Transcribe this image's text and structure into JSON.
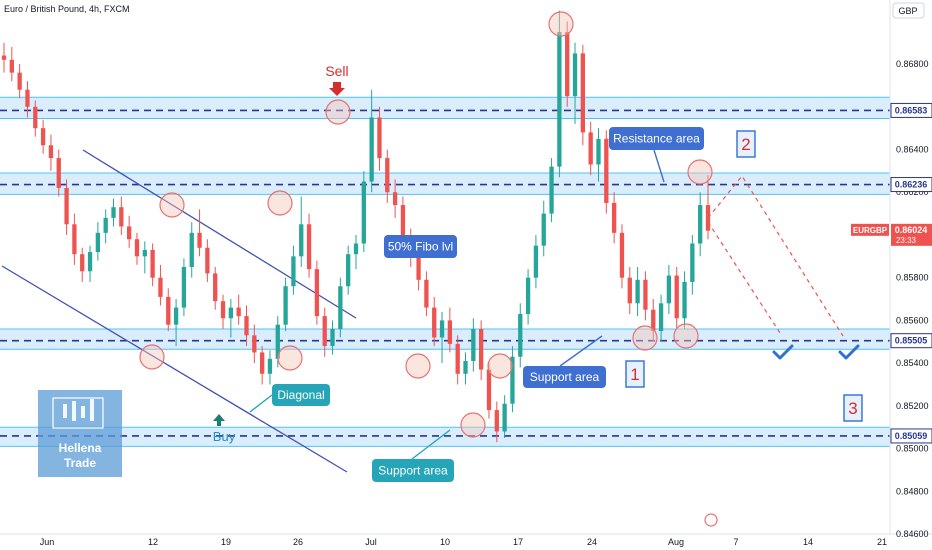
{
  "header": {
    "title": "Euro / British Pound, 4h, FXCM",
    "currency": "GBP"
  },
  "colors": {
    "up": "#26a69a",
    "down": "#ef5350",
    "band_fill": "#bbdefb",
    "band_line": "#4fc3f7",
    "level_line": "#283593",
    "trend_line": "#3f51b5",
    "teal_label": "#26a5b8",
    "blue_label": "#3f6fd0",
    "sell_color": "#d32f2f",
    "buy_color": "#26a69a",
    "circle_fill": "#f5c6b8",
    "circle_stroke": "#e57373",
    "price_box": "#ffffff"
  },
  "chart_data": {
    "type": "candlestick",
    "instrument": "EURGBP",
    "timeframe": "4h",
    "ylim": [
      0.846,
      0.871
    ],
    "y_ticks": [
      "0.86800",
      "0.86600",
      "0.86400",
      "0.86200",
      "0.86000",
      "0.85800",
      "0.85600",
      "0.85400",
      "0.85200",
      "0.85000",
      "0.84800",
      "0.84600"
    ],
    "x_ticks": [
      "Jun",
      "12",
      "19",
      "26",
      "Jul",
      "10",
      "17",
      "24",
      "Aug",
      "7",
      "14",
      "21"
    ],
    "levels": [
      {
        "price": 0.86583,
        "label": "0.86583",
        "band": [
          0.86545,
          0.86645
        ]
      },
      {
        "price": 0.86236,
        "label": "0.86236",
        "band": [
          0.8619,
          0.8629
        ]
      },
      {
        "price": 0.85505,
        "label": "0.85505",
        "band": [
          0.85465,
          0.8556
        ]
      },
      {
        "price": 0.85059,
        "label": "0.85059",
        "band": [
          0.8501,
          0.851
        ]
      }
    ],
    "current": {
      "symbol": "EURGBP",
      "price": "0.86024",
      "countdown": "23:33"
    },
    "series": [
      {
        "values": [
          [
            0.8684,
            0.869,
            0.8676,
            0.8682
          ],
          [
            0.8682,
            0.8688,
            0.8672,
            0.8676
          ],
          [
            0.8676,
            0.868,
            0.8664,
            0.8668
          ],
          [
            0.8668,
            0.8672,
            0.8655,
            0.866
          ],
          [
            0.866,
            0.8663,
            0.8646,
            0.865
          ],
          [
            0.865,
            0.8654,
            0.8638,
            0.8642
          ],
          [
            0.8642,
            0.8647,
            0.863,
            0.8636
          ],
          [
            0.8636,
            0.864,
            0.8618,
            0.8622
          ],
          [
            0.8622,
            0.8626,
            0.86,
            0.8605
          ],
          [
            0.8605,
            0.861,
            0.8586,
            0.8591
          ],
          [
            0.8591,
            0.8594,
            0.8578,
            0.8583
          ],
          [
            0.8583,
            0.8595,
            0.8578,
            0.8592
          ],
          [
            0.8592,
            0.8606,
            0.8588,
            0.8601
          ],
          [
            0.8601,
            0.8612,
            0.8596,
            0.8608
          ],
          [
            0.8608,
            0.8617,
            0.8604,
            0.8613
          ],
          [
            0.8613,
            0.8618,
            0.86,
            0.8604
          ],
          [
            0.8604,
            0.8609,
            0.8594,
            0.8598
          ],
          [
            0.8598,
            0.8601,
            0.8586,
            0.859
          ],
          [
            0.859,
            0.8597,
            0.8582,
            0.8593
          ],
          [
            0.8593,
            0.8596,
            0.8576,
            0.858
          ],
          [
            0.858,
            0.8586,
            0.8567,
            0.8571
          ],
          [
            0.8571,
            0.8575,
            0.8555,
            0.8558
          ],
          [
            0.8558,
            0.857,
            0.8548,
            0.8566
          ],
          [
            0.8566,
            0.8589,
            0.8562,
            0.8585
          ],
          [
            0.8585,
            0.8606,
            0.858,
            0.8601
          ],
          [
            0.8601,
            0.8612,
            0.859,
            0.8594
          ],
          [
            0.8594,
            0.8598,
            0.8578,
            0.8582
          ],
          [
            0.8582,
            0.8585,
            0.8565,
            0.8569
          ],
          [
            0.8569,
            0.8572,
            0.8556,
            0.8561
          ],
          [
            0.8561,
            0.857,
            0.8552,
            0.8566
          ],
          [
            0.8566,
            0.8572,
            0.8558,
            0.8562
          ],
          [
            0.8562,
            0.8567,
            0.8548,
            0.8553
          ],
          [
            0.8553,
            0.8558,
            0.854,
            0.8545
          ],
          [
            0.8545,
            0.8548,
            0.853,
            0.8535
          ],
          [
            0.8535,
            0.8546,
            0.853,
            0.8542
          ],
          [
            0.8542,
            0.8562,
            0.8538,
            0.8558
          ],
          [
            0.8558,
            0.858,
            0.8555,
            0.8576
          ],
          [
            0.8576,
            0.8595,
            0.8572,
            0.859
          ],
          [
            0.859,
            0.8618,
            0.8585,
            0.8605
          ],
          [
            0.8605,
            0.861,
            0.858,
            0.8584
          ],
          [
            0.8584,
            0.8588,
            0.8558,
            0.8562
          ],
          [
            0.8562,
            0.8566,
            0.8543,
            0.8548
          ],
          [
            0.8548,
            0.856,
            0.8544,
            0.8556
          ],
          [
            0.8556,
            0.858,
            0.8552,
            0.8576
          ],
          [
            0.8576,
            0.8595,
            0.8572,
            0.8591
          ],
          [
            0.8591,
            0.86,
            0.8584,
            0.8596
          ],
          [
            0.8596,
            0.863,
            0.8592,
            0.8625
          ],
          [
            0.8625,
            0.8668,
            0.862,
            0.8655
          ],
          [
            0.8655,
            0.866,
            0.863,
            0.8636
          ],
          [
            0.8636,
            0.864,
            0.8615,
            0.862
          ],
          [
            0.862,
            0.8626,
            0.8608,
            0.8614
          ],
          [
            0.8614,
            0.8618,
            0.8594,
            0.8598
          ],
          [
            0.8598,
            0.8603,
            0.8585,
            0.859
          ],
          [
            0.859,
            0.8594,
            0.8574,
            0.8579
          ],
          [
            0.8579,
            0.8583,
            0.8562,
            0.8566
          ],
          [
            0.8566,
            0.8571,
            0.8548,
            0.8552
          ],
          [
            0.8552,
            0.8564,
            0.854,
            0.856
          ],
          [
            0.856,
            0.8566,
            0.8545,
            0.8549
          ],
          [
            0.8549,
            0.8553,
            0.853,
            0.8535
          ],
          [
            0.8535,
            0.8545,
            0.853,
            0.8541
          ],
          [
            0.8541,
            0.8561,
            0.8536,
            0.8556
          ],
          [
            0.8556,
            0.856,
            0.8532,
            0.8537
          ],
          [
            0.8537,
            0.8541,
            0.8514,
            0.8518
          ],
          [
            0.8518,
            0.8522,
            0.8503,
            0.8508
          ],
          [
            0.8508,
            0.8525,
            0.8505,
            0.8521
          ],
          [
            0.8521,
            0.8548,
            0.8517,
            0.8543
          ],
          [
            0.8543,
            0.8568,
            0.8538,
            0.8563
          ],
          [
            0.8563,
            0.8584,
            0.8558,
            0.858
          ],
          [
            0.858,
            0.86,
            0.8575,
            0.8595
          ],
          [
            0.8595,
            0.8616,
            0.859,
            0.861
          ],
          [
            0.861,
            0.8636,
            0.8606,
            0.8632
          ],
          [
            0.8632,
            0.8705,
            0.8627,
            0.8695
          ],
          [
            0.8695,
            0.87,
            0.866,
            0.8665
          ],
          [
            0.8665,
            0.869,
            0.8652,
            0.8685
          ],
          [
            0.8685,
            0.8689,
            0.8642,
            0.8648
          ],
          [
            0.8648,
            0.8653,
            0.8628,
            0.8633
          ],
          [
            0.8633,
            0.865,
            0.8625,
            0.8645
          ],
          [
            0.8645,
            0.8649,
            0.861,
            0.8615
          ],
          [
            0.8615,
            0.862,
            0.8596,
            0.8601
          ],
          [
            0.8601,
            0.8605,
            0.8575,
            0.858
          ],
          [
            0.858,
            0.8585,
            0.8563,
            0.8568
          ],
          [
            0.8568,
            0.8585,
            0.8562,
            0.8579
          ],
          [
            0.8579,
            0.8583,
            0.856,
            0.8565
          ],
          [
            0.8565,
            0.857,
            0.855,
            0.8555
          ],
          [
            0.8555,
            0.8572,
            0.855,
            0.8568
          ],
          [
            0.8568,
            0.8586,
            0.8563,
            0.8581
          ],
          [
            0.8581,
            0.8585,
            0.8556,
            0.8561
          ],
          [
            0.8561,
            0.8583,
            0.8556,
            0.8578
          ],
          [
            0.8578,
            0.86,
            0.8572,
            0.8596
          ],
          [
            0.8596,
            0.862,
            0.859,
            0.8614
          ],
          [
            0.8614,
            0.8628,
            0.8598,
            0.8602
          ]
        ]
      }
    ]
  },
  "annotations": {
    "sell": "Sell",
    "buy": "Buy",
    "resistance_area": "Resistance area",
    "fibo": "50% Fibo lvl",
    "diagonal": "Diagonal",
    "support_area_1": "Support area",
    "support_area_2": "Support area",
    "box1": "1",
    "box2": "2",
    "box3": "3",
    "logo_line1": "Hellena",
    "logo_line2": "Trade"
  }
}
